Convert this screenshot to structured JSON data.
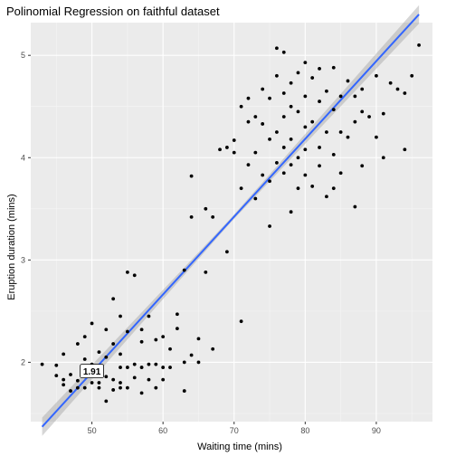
{
  "chart_data": {
    "type": "scatter",
    "title": "Polinomial Regression on faithful dataset",
    "xlabel": "Waiting time (mins)",
    "ylabel": "Eruption duration (mins)",
    "xlim": [
      41.4,
      97.9
    ],
    "ylim": [
      1.42,
      5.32
    ],
    "x_ticks": [
      50,
      60,
      70,
      80,
      90
    ],
    "y_ticks": [
      2,
      3,
      4,
      5
    ],
    "grid": true,
    "panel_background": "#ebebeb",
    "colors": {
      "points": "#000000",
      "fit_line": "#3366ff",
      "ribbon": "#999999"
    },
    "fit": {
      "method": "linear",
      "x": [
        43,
        96
      ],
      "y": [
        1.37,
        5.4
      ],
      "ribbon_halfwidth": [
        0.09,
        0.02,
        0.09
      ]
    },
    "annotation": {
      "label": "1.91",
      "x": 50,
      "y": 1.91
    },
    "points": [
      [
        43,
        1.98
      ],
      [
        45,
        1.87
      ],
      [
        45,
        1.97
      ],
      [
        46,
        1.83
      ],
      [
        46,
        1.78
      ],
      [
        46,
        2.08
      ],
      [
        47,
        1.88
      ],
      [
        47,
        1.72
      ],
      [
        48,
        1.75
      ],
      [
        48,
        1.82
      ],
      [
        48,
        2.18
      ],
      [
        49,
        1.75
      ],
      [
        49,
        2.03
      ],
      [
        49,
        2.25
      ],
      [
        49,
        1.86
      ],
      [
        50,
        1.8
      ],
      [
        50,
        1.98
      ],
      [
        50,
        2.38
      ],
      [
        50,
        1.95
      ],
      [
        51,
        1.8
      ],
      [
        51,
        2.1
      ],
      [
        51,
        1.75
      ],
      [
        51,
        1.9
      ],
      [
        52,
        1.86
      ],
      [
        52,
        1.62
      ],
      [
        52,
        2.32
      ],
      [
        52,
        2.05
      ],
      [
        53,
        1.83
      ],
      [
        53,
        2.18
      ],
      [
        53,
        1.73
      ],
      [
        53,
        2.62
      ],
      [
        54,
        1.8
      ],
      [
        54,
        1.95
      ],
      [
        54,
        2.08
      ],
      [
        54,
        1.75
      ],
      [
        54,
        2.45
      ],
      [
        55,
        1.75
      ],
      [
        55,
        1.95
      ],
      [
        55,
        2.3
      ],
      [
        55,
        2.88
      ],
      [
        56,
        1.98
      ],
      [
        56,
        2.85
      ],
      [
        56,
        1.85
      ],
      [
        57,
        1.95
      ],
      [
        57,
        2.2
      ],
      [
        57,
        1.7
      ],
      [
        57,
        2.32
      ],
      [
        58,
        1.83
      ],
      [
        58,
        1.98
      ],
      [
        58,
        2.45
      ],
      [
        59,
        1.75
      ],
      [
        59,
        1.98
      ],
      [
        59,
        2.22
      ],
      [
        60,
        1.83
      ],
      [
        60,
        2.25
      ],
      [
        60,
        1.95
      ],
      [
        61,
        1.95
      ],
      [
        61,
        2.13
      ],
      [
        62,
        2.47
      ],
      [
        62,
        2.33
      ],
      [
        63,
        2.9
      ],
      [
        63,
        2.0
      ],
      [
        63,
        1.72
      ],
      [
        64,
        2.07
      ],
      [
        64,
        3.42
      ],
      [
        64,
        3.82
      ],
      [
        65,
        2.23
      ],
      [
        65,
        2.0
      ],
      [
        66,
        2.88
      ],
      [
        66,
        3.5
      ],
      [
        67,
        2.13
      ],
      [
        67,
        3.42
      ],
      [
        68,
        4.08
      ],
      [
        69,
        3.08
      ],
      [
        69,
        4.1
      ],
      [
        70,
        4.05
      ],
      [
        70,
        4.17
      ],
      [
        71,
        2.4
      ],
      [
        71,
        3.7
      ],
      [
        71,
        4.5
      ],
      [
        72,
        4.35
      ],
      [
        72,
        3.93
      ],
      [
        72,
        4.58
      ],
      [
        73,
        4.05
      ],
      [
        73,
        3.6
      ],
      [
        73,
        4.4
      ],
      [
        74,
        4.33
      ],
      [
        74,
        3.83
      ],
      [
        74,
        4.67
      ],
      [
        75,
        4.18
      ],
      [
        75,
        3.33
      ],
      [
        75,
        4.58
      ],
      [
        75,
        3.77
      ],
      [
        76,
        4.8
      ],
      [
        76,
        3.95
      ],
      [
        76,
        4.25
      ],
      [
        76,
        5.07
      ],
      [
        77,
        4.1
      ],
      [
        77,
        3.85
      ],
      [
        77,
        4.63
      ],
      [
        77,
        4.4
      ],
      [
        77,
        5.03
      ],
      [
        78,
        3.93
      ],
      [
        78,
        4.5
      ],
      [
        78,
        4.73
      ],
      [
        78,
        4.18
      ],
      [
        78,
        3.47
      ],
      [
        79,
        4.0
      ],
      [
        79,
        4.45
      ],
      [
        79,
        4.83
      ],
      [
        79,
        3.7
      ],
      [
        80,
        4.6
      ],
      [
        80,
        4.3
      ],
      [
        80,
        3.83
      ],
      [
        80,
        4.08
      ],
      [
        80,
        4.93
      ],
      [
        81,
        4.35
      ],
      [
        81,
        3.72
      ],
      [
        81,
        4.78
      ],
      [
        82,
        4.1
      ],
      [
        82,
        4.55
      ],
      [
        82,
        3.92
      ],
      [
        82,
        4.87
      ],
      [
        83,
        4.25
      ],
      [
        83,
        3.62
      ],
      [
        83,
        4.65
      ],
      [
        84,
        4.03
      ],
      [
        84,
        4.47
      ],
      [
        84,
        4.88
      ],
      [
        84,
        3.7
      ],
      [
        85,
        4.25
      ],
      [
        85,
        4.6
      ],
      [
        85,
        3.85
      ],
      [
        86,
        4.2
      ],
      [
        86,
        4.75
      ],
      [
        87,
        3.52
      ],
      [
        87,
        4.35
      ],
      [
        87,
        4.6
      ],
      [
        88,
        4.67
      ],
      [
        88,
        3.92
      ],
      [
        88,
        4.45
      ],
      [
        89,
        4.4
      ],
      [
        90,
        4.8
      ],
      [
        90,
        4.2
      ],
      [
        91,
        4.43
      ],
      [
        91,
        4.0
      ],
      [
        92,
        4.73
      ],
      [
        93,
        4.67
      ],
      [
        94,
        4.63
      ],
      [
        94,
        4.08
      ],
      [
        96,
        5.1
      ],
      [
        95,
        4.8
      ]
    ]
  }
}
